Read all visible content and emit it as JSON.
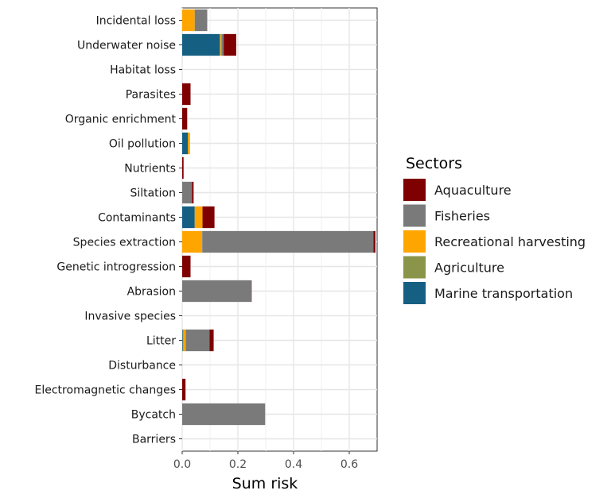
{
  "chart_data": {
    "type": "bar",
    "orientation": "horizontal",
    "stacked": true,
    "title": "",
    "xlabel": "Sum risk",
    "ylabel": "",
    "xlim": [
      0,
      0.7
    ],
    "x_ticks": [
      0.0,
      0.2,
      0.4,
      0.6
    ],
    "x_tick_labels": [
      "0.0",
      "0.2",
      "0.4",
      "0.6"
    ],
    "grid": true,
    "legend_position": "right",
    "legend_title": "Sectors",
    "categories": [
      "Incidental loss",
      "Underwater noise",
      "Habitat loss",
      "Parasites",
      "Organic enrichment",
      "Oil pollution",
      "Nutrients",
      "Siltation",
      "Contaminants",
      "Species extraction",
      "Genetic introgression",
      "Abrasion",
      "Invasive species",
      "Litter",
      "Disturbance",
      "Electromagnetic changes",
      "Bycatch",
      "Barriers"
    ],
    "stack_order": [
      "Marine transportation",
      "Agriculture",
      "Recreational harvesting",
      "Fisheries",
      "Aquaculture"
    ],
    "series": [
      {
        "name": "Aquaculture",
        "color": "#7f0000",
        "values": [
          0,
          0.045,
          0,
          0.03,
          0.018,
          0,
          0.005,
          0.006,
          0.043,
          0.007,
          0.03,
          0.001,
          0,
          0.015,
          0,
          0.012,
          0,
          0
        ]
      },
      {
        "name": "Fisheries",
        "color": "#7a7a7a",
        "values": [
          0.045,
          0.008,
          0,
          0,
          0,
          0,
          0,
          0.035,
          0,
          0.615,
          0,
          0.248,
          0,
          0.085,
          0,
          0,
          0.298,
          0
        ]
      },
      {
        "name": "Recreational harvesting",
        "color": "#ffa500",
        "values": [
          0.045,
          0.003,
          0,
          0,
          0,
          0.008,
          0,
          0,
          0.028,
          0.072,
          0,
          0,
          0,
          0.008,
          0,
          0,
          0,
          0
        ]
      },
      {
        "name": "Agriculture",
        "color": "#8b954a",
        "values": [
          0,
          0.003,
          0,
          0,
          0,
          0,
          0,
          0,
          0,
          0,
          0,
          0,
          0,
          0.003,
          0,
          0,
          0,
          0
        ]
      },
      {
        "name": "Marine transportation",
        "color": "#155f83",
        "values": [
          0,
          0.135,
          0,
          0,
          0,
          0.02,
          0,
          0,
          0.045,
          0,
          0,
          0,
          0,
          0.002,
          0,
          0,
          0,
          0
        ]
      }
    ]
  }
}
